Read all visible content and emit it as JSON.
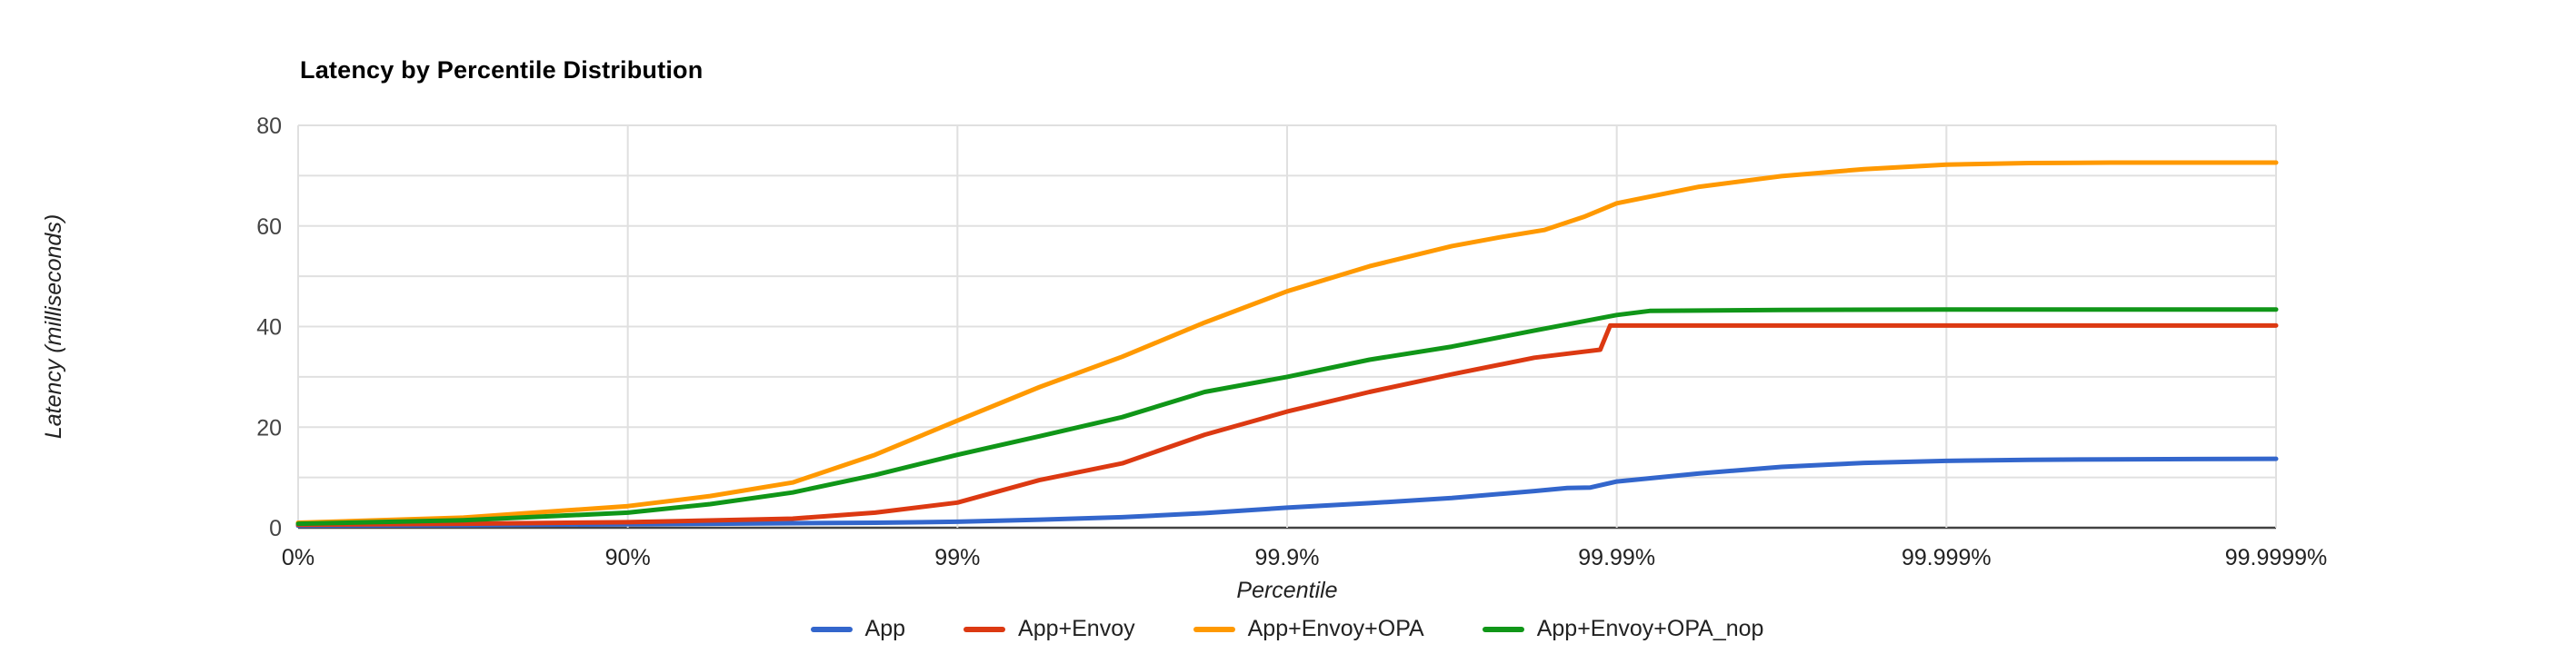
{
  "title": "Latency by Percentile Distribution",
  "x_axis": {
    "title": "Percentile"
  },
  "y_axis": {
    "title": "Latency (milliseconds)"
  },
  "colors": {
    "grid": "#e0e0e0",
    "axis_line": "#424242",
    "title_text": "#000000",
    "tick_text": "#444444",
    "series_blue": "#3366cc",
    "series_red": "#dc3912",
    "series_orange": "#ff9900",
    "series_green": "#109618"
  },
  "chart_data": {
    "type": "line",
    "title": "Latency by Percentile Distribution",
    "xlabel": "Percentile",
    "ylabel": "Latency (milliseconds)",
    "x_scale": "percentile-nines (ticks evenly spaced per extra nine of percentile)",
    "x_tick_labels": [
      "0%",
      "90%",
      "99%",
      "99.9%",
      "99.99%",
      "99.999%",
      "99.9999%"
    ],
    "x_tick_nines": [
      0,
      1,
      2,
      3,
      4,
      5,
      6
    ],
    "y_ticks": [
      0,
      20,
      40,
      60,
      80
    ],
    "y_gridline_step": 10,
    "ylim": [
      0,
      80
    ],
    "grid": true,
    "legend_position": "bottom",
    "series": [
      {
        "name": "App",
        "color": "#3366cc",
        "points_nines_ms": [
          [
            0,
            0.4
          ],
          [
            0.5,
            0.5
          ],
          [
            1,
            0.7
          ],
          [
            1.25,
            0.8
          ],
          [
            1.5,
            0.9
          ],
          [
            1.75,
            1.0
          ],
          [
            2,
            1.2
          ],
          [
            2.25,
            1.6
          ],
          [
            2.5,
            2.1
          ],
          [
            2.75,
            2.9
          ],
          [
            3,
            4.0
          ],
          [
            3.25,
            4.9
          ],
          [
            3.5,
            5.9
          ],
          [
            3.75,
            7.3
          ],
          [
            3.85,
            7.9
          ],
          [
            3.92,
            8.0
          ],
          [
            4,
            9.2
          ],
          [
            4.25,
            10.8
          ],
          [
            4.5,
            12.1
          ],
          [
            4.75,
            12.9
          ],
          [
            5,
            13.3
          ],
          [
            5.25,
            13.5
          ],
          [
            5.5,
            13.6
          ],
          [
            6,
            13.7
          ]
        ]
      },
      {
        "name": "App+Envoy",
        "color": "#dc3912",
        "points_nines_ms": [
          [
            0,
            0.6
          ],
          [
            0.5,
            0.8
          ],
          [
            1,
            1.1
          ],
          [
            1.5,
            1.8
          ],
          [
            1.75,
            3.0
          ],
          [
            2,
            5.0
          ],
          [
            2.25,
            9.5
          ],
          [
            2.5,
            12.8
          ],
          [
            2.75,
            18.5
          ],
          [
            3,
            23.1
          ],
          [
            3.25,
            27.0
          ],
          [
            3.5,
            30.5
          ],
          [
            3.75,
            33.8
          ],
          [
            3.9,
            35.0
          ],
          [
            3.95,
            35.4
          ],
          [
            3.98,
            40.2
          ],
          [
            4,
            40.2
          ],
          [
            4.5,
            40.2
          ],
          [
            5,
            40.2
          ],
          [
            5.5,
            40.2
          ],
          [
            6,
            40.2
          ]
        ]
      },
      {
        "name": "App+Envoy+OPA",
        "color": "#ff9900",
        "points_nines_ms": [
          [
            0,
            1.0
          ],
          [
            0.5,
            2.0
          ],
          [
            1,
            4.3
          ],
          [
            1.25,
            6.3
          ],
          [
            1.5,
            9.0
          ],
          [
            1.75,
            14.5
          ],
          [
            2,
            21.3
          ],
          [
            2.25,
            28.0
          ],
          [
            2.5,
            34.0
          ],
          [
            2.75,
            40.8
          ],
          [
            3,
            47.0
          ],
          [
            3.25,
            52.0
          ],
          [
            3.5,
            56.0
          ],
          [
            3.65,
            57.8
          ],
          [
            3.78,
            59.2
          ],
          [
            3.9,
            61.8
          ],
          [
            4,
            64.5
          ],
          [
            4.25,
            67.8
          ],
          [
            4.5,
            69.9
          ],
          [
            4.75,
            71.3
          ],
          [
            5,
            72.2
          ],
          [
            5.25,
            72.5
          ],
          [
            5.5,
            72.6
          ],
          [
            6,
            72.6
          ]
        ]
      },
      {
        "name": "App+Envoy+OPA_nop",
        "color": "#109618",
        "points_nines_ms": [
          [
            0,
            0.8
          ],
          [
            0.5,
            1.5
          ],
          [
            1,
            3.0
          ],
          [
            1.25,
            4.7
          ],
          [
            1.5,
            7.0
          ],
          [
            1.75,
            10.5
          ],
          [
            2,
            14.5
          ],
          [
            2.25,
            18.2
          ],
          [
            2.5,
            22.0
          ],
          [
            2.75,
            27.0
          ],
          [
            3,
            30.0
          ],
          [
            3.25,
            33.4
          ],
          [
            3.5,
            36.0
          ],
          [
            3.75,
            39.2
          ],
          [
            4,
            42.3
          ],
          [
            4.1,
            43.1
          ],
          [
            4.5,
            43.3
          ],
          [
            5,
            43.4
          ],
          [
            5.5,
            43.4
          ],
          [
            6,
            43.4
          ]
        ]
      }
    ]
  }
}
